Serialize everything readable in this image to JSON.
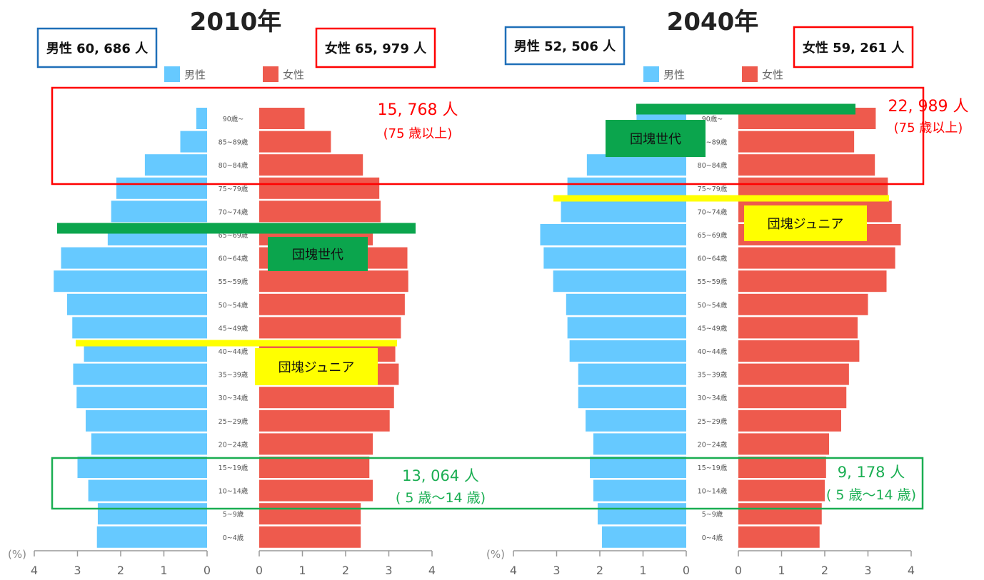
{
  "colors": {
    "male": "#66C9FF",
    "female": "#EE5A4D",
    "red_box": "#FF0000",
    "blue_box": "#1F6FB8",
    "green_box": "#1AAE52",
    "dankai_bar": "#0BA54D",
    "junior_bar": "#FFFF00",
    "axis": "#999999",
    "label": "#666666"
  },
  "legend": {
    "male": "男性",
    "female": "女性"
  },
  "chart_data": [
    {
      "type": "bar",
      "orientation": "horizontal-population-pyramid",
      "title": "2010年",
      "categories": [
        "0~4歳",
        "5~9歳",
        "10~14歳",
        "15~19歳",
        "20~24歳",
        "25~29歳",
        "30~34歳",
        "35~39歳",
        "40~44歳",
        "45~49歳",
        "50~54歳",
        "55~59歳",
        "60~64歳",
        "65~69歳",
        "70~74歳",
        "75~79歳",
        "80~84歳",
        "85~89歳",
        "90歳~"
      ],
      "series": [
        {
          "name": "男性",
          "values": [
            2.55,
            2.53,
            2.75,
            3.0,
            2.68,
            2.81,
            3.02,
            3.1,
            2.85,
            3.12,
            3.24,
            3.55,
            3.38,
            2.3,
            2.22,
            2.1,
            1.44,
            0.62,
            0.25
          ]
        },
        {
          "name": "女性",
          "values": [
            2.35,
            2.35,
            2.63,
            2.55,
            2.63,
            3.02,
            3.12,
            3.23,
            3.15,
            3.28,
            3.37,
            3.45,
            3.43,
            2.63,
            2.81,
            2.78,
            2.4,
            1.66,
            1.05
          ]
        }
      ],
      "xlabel": "(%)",
      "xlim": [
        0,
        4
      ],
      "ticks": [
        "4",
        "3",
        "2",
        "1",
        "0",
        "0",
        "1",
        "2",
        "3",
        "4"
      ],
      "male_total": "男性 60, 686 人",
      "female_total": "女性 65, 979 人",
      "elderly_count": "15, 768 人",
      "elderly_note": "(75 歳以上)",
      "youth_count": "13, 064 人",
      "youth_note": "( 5 歳〜14 歳)",
      "dankai_label": "団塊世代",
      "junior_label": "団塊ジュニア"
    },
    {
      "type": "bar",
      "orientation": "horizontal-population-pyramid",
      "title": "2040年",
      "categories": [
        "0~4歳",
        "5~9歳",
        "10~14歳",
        "15~19歳",
        "20~24歳",
        "25~29歳",
        "30~34歳",
        "35~39歳",
        "40~44歳",
        "45~49歳",
        "50~54歳",
        "55~59歳",
        "60~64歳",
        "65~69歳",
        "70~74歳",
        "75~79歳",
        "80~84歳",
        "85~89歳",
        "90歳~"
      ],
      "series": [
        {
          "name": "男性",
          "values": [
            1.95,
            2.05,
            2.15,
            2.23,
            2.15,
            2.33,
            2.5,
            2.5,
            2.7,
            2.75,
            2.78,
            3.08,
            3.3,
            3.38,
            2.9,
            2.75,
            2.3,
            1.6,
            1.15
          ]
        },
        {
          "name": "女性",
          "values": [
            1.88,
            1.93,
            2.0,
            2.03,
            2.1,
            2.38,
            2.5,
            2.56,
            2.8,
            2.76,
            3.0,
            3.43,
            3.63,
            3.76,
            3.55,
            3.46,
            3.16,
            2.68,
            3.18
          ]
        }
      ],
      "xlabel": "(%)",
      "xlim": [
        0,
        4
      ],
      "ticks": [
        "4",
        "3",
        "2",
        "1",
        "0",
        "0",
        "1",
        "2",
        "3",
        "4"
      ],
      "male_total": "男性 52, 506 人",
      "female_total": "女性 59, 261 人",
      "elderly_count": "22, 989 人",
      "elderly_note": "(75 歳以上)",
      "youth_count": "9, 178 人",
      "youth_note": "( 5 歳〜14 歳)",
      "dankai_label": "団塊世代",
      "junior_label": "団塊ジュニア"
    }
  ]
}
